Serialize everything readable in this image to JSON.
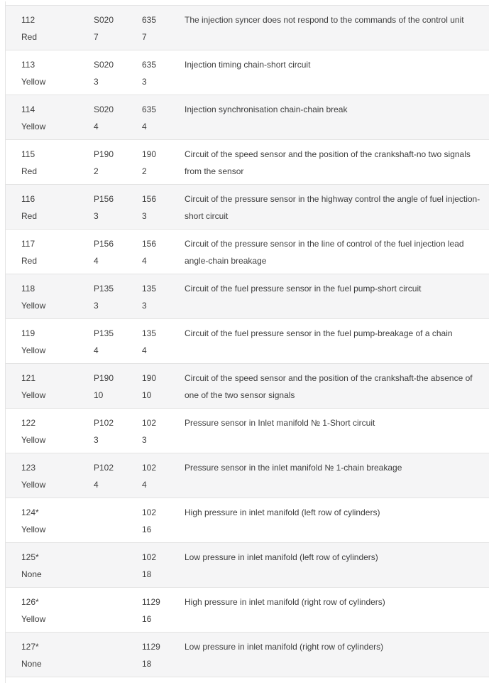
{
  "palette": {
    "text_color": "#3e3e3e",
    "border_color": "#e3e3e3",
    "row_shade": "#f5f5f6",
    "page_bg": "#ffffff"
  },
  "table": {
    "description": "Diagnostic fault code table: each row shows fault code + lamp color, sensor code + subcode, parameter code + subcode, and a fault description",
    "rows": [
      {
        "code": "112",
        "lamp": "Red",
        "sensor_code": "S020",
        "sensor_sub": "7",
        "param_code": "635",
        "param_sub": "7",
        "desc": "The injection syncer does not respond to the commands of the control unit"
      },
      {
        "code": "113",
        "lamp": "Yellow",
        "sensor_code": "S020",
        "sensor_sub": "3",
        "param_code": "635",
        "param_sub": "3",
        "desc": "Injection timing chain-short circuit"
      },
      {
        "code": "114",
        "lamp": "Yellow",
        "sensor_code": "S020",
        "sensor_sub": "4",
        "param_code": "635",
        "param_sub": "4",
        "desc": "Injection synchronisation chain-chain break"
      },
      {
        "code": "115",
        "lamp": "Red",
        "sensor_code": "P190",
        "sensor_sub": "2",
        "param_code": "190",
        "param_sub": "2",
        "desc": "Circuit of the speed sensor and the position of the crankshaft-no two signals from the sensor"
      },
      {
        "code": "116",
        "lamp": "Red",
        "sensor_code": "P156",
        "sensor_sub": "3",
        "param_code": "156",
        "param_sub": "3",
        "desc": "Circuit of the pressure sensor in the highway control the angle of fuel injection-short circuit"
      },
      {
        "code": "117",
        "lamp": "Red",
        "sensor_code": "P156",
        "sensor_sub": "4",
        "param_code": "156",
        "param_sub": "4",
        "desc": "Circuit of the pressure sensor in the line of control of the fuel injection lead angle-chain breakage"
      },
      {
        "code": "118",
        "lamp": "Yellow",
        "sensor_code": "P135",
        "sensor_sub": "3",
        "param_code": "135",
        "param_sub": "3",
        "desc": "Circuit of the fuel pressure sensor in the fuel pump-short circuit"
      },
      {
        "code": "119",
        "lamp": "Yellow",
        "sensor_code": "P135",
        "sensor_sub": "4",
        "param_code": "135",
        "param_sub": "4",
        "desc": "Circuit of the fuel pressure sensor in the fuel pump-breakage of a chain"
      },
      {
        "code": "121",
        "lamp": "Yellow",
        "sensor_code": "P190",
        "sensor_sub": "10",
        "param_code": "190",
        "param_sub": "10",
        "desc": "Circuit of the speed sensor and the position of the crankshaft-the absence of one of the two sensor signals"
      },
      {
        "code": "122",
        "lamp": "Yellow",
        "sensor_code": "P102",
        "sensor_sub": "3",
        "param_code": "102",
        "param_sub": "3",
        "desc": "Pressure sensor in Inlet manifold № 1-Short circuit"
      },
      {
        "code": "123",
        "lamp": "Yellow",
        "sensor_code": "P102",
        "sensor_sub": "4",
        "param_code": "102",
        "param_sub": "4",
        "desc": "Pressure sensor in the inlet manifold № 1-chain breakage"
      },
      {
        "code": "124*",
        "lamp": "Yellow",
        "sensor_code": "",
        "sensor_sub": "",
        "param_code": "102",
        "param_sub": "16",
        "desc": "High pressure in inlet manifold (left row of cylinders)"
      },
      {
        "code": "125*",
        "lamp": "None",
        "sensor_code": "",
        "sensor_sub": "",
        "param_code": "102",
        "param_sub": "18",
        "desc": "Low pressure in inlet manifold (left row of cylinders)"
      },
      {
        "code": "126*",
        "lamp": "Yellow",
        "sensor_code": "",
        "sensor_sub": "",
        "param_code": "1129",
        "param_sub": "16",
        "desc": "High pressure in inlet manifold (right row of cylinders)"
      },
      {
        "code": "127*",
        "lamp": "None",
        "sensor_code": "",
        "sensor_sub": "",
        "param_code": "1129",
        "param_sub": "18",
        "desc": "Low pressure in inlet manifold (right row of cylinders)"
      }
    ]
  }
}
